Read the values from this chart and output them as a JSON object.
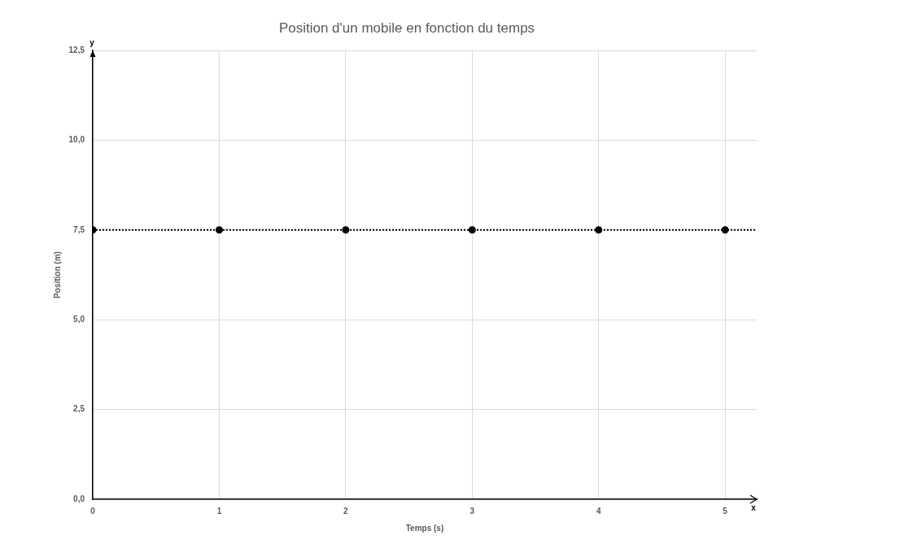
{
  "chart_data": {
    "type": "scatter",
    "title": "Position d'un mobile en fonction du temps",
    "xlabel": "Temps (s)",
    "ylabel": "Position (m)",
    "x": [
      0,
      1,
      2,
      3,
      4,
      5
    ],
    "series": [
      {
        "color": "#000000",
        "values": [
          7.5,
          7.5,
          7.5,
          7.5,
          7.5,
          7.5
        ]
      }
    ],
    "marker": "circle",
    "ref_lines": [
      {
        "axis": "y",
        "value": 7.5,
        "color": "#000000",
        "line_style": "dotted"
      }
    ],
    "xlim": [
      0,
      5.25
    ],
    "xticks": [
      0,
      1,
      2,
      3,
      4,
      5
    ],
    "ylim": [
      0,
      12.5
    ],
    "yticks": [
      {
        "value": 0,
        "label": "0,0"
      },
      {
        "value": 2.5,
        "label": "2,5"
      },
      {
        "value": 5,
        "label": "5,0"
      },
      {
        "value": 7.5,
        "label": "7,5"
      },
      {
        "value": 10,
        "label": "10,0"
      },
      {
        "value": 12.5,
        "label": "12,5"
      }
    ],
    "grid": true,
    "annotations": [
      "x",
      "y"
    ]
  }
}
